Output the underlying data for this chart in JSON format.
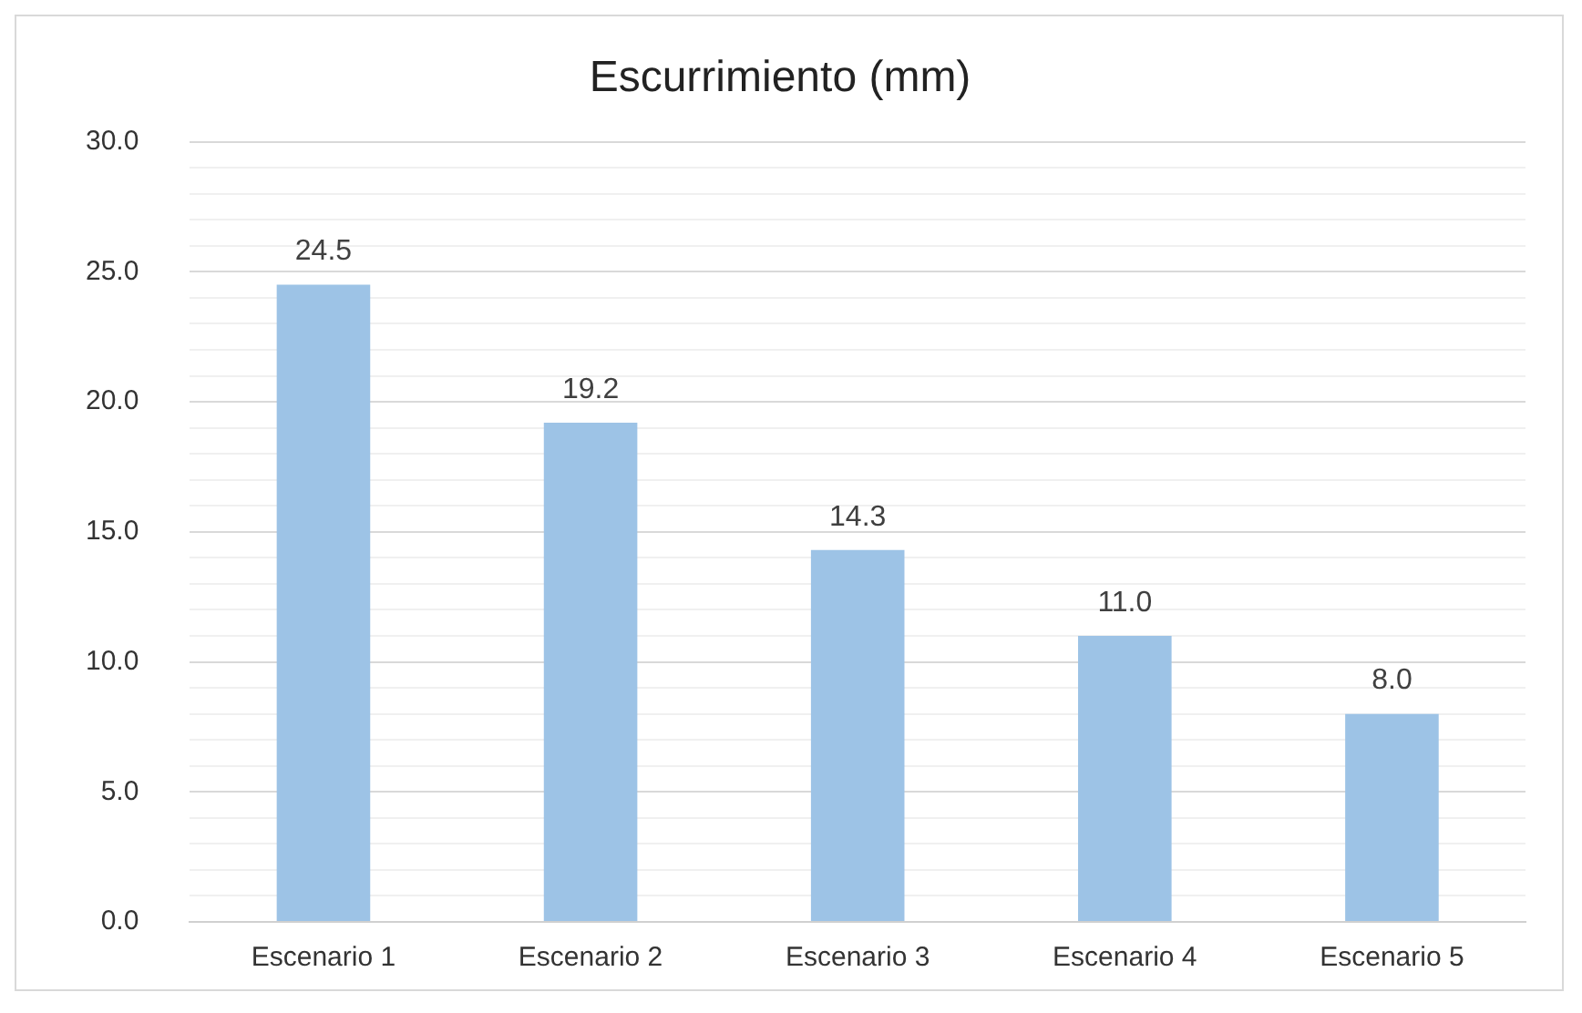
{
  "chart_data": {
    "type": "bar",
    "title": "Escurrimiento (mm)",
    "categories": [
      "Escenario 1",
      "Escenario 2",
      "Escenario 3",
      "Escenario 4",
      "Escenario 5"
    ],
    "values": [
      24.5,
      19.2,
      14.3,
      11.0,
      8.0
    ],
    "color": "#9dc3e6",
    "value_labels": [
      "24.5",
      "19.2",
      "14.3",
      "11.0",
      "8.0"
    ],
    "ylim": [
      0,
      30
    ],
    "yticks": [
      {
        "value": 0,
        "label": "0.0"
      },
      {
        "value": 1,
        "label": null
      },
      {
        "value": 2,
        "label": null
      },
      {
        "value": 3,
        "label": null
      },
      {
        "value": 4,
        "label": null
      },
      {
        "value": 5,
        "label": "5.0"
      },
      {
        "value": 6,
        "label": null
      },
      {
        "value": 7,
        "label": null
      },
      {
        "value": 8,
        "label": null
      },
      {
        "value": 9,
        "label": null
      },
      {
        "value": 10,
        "label": "10.0"
      },
      {
        "value": 11,
        "label": null
      },
      {
        "value": 12,
        "label": null
      },
      {
        "value": 13,
        "label": null
      },
      {
        "value": 14,
        "label": null
      },
      {
        "value": 15,
        "label": "15.0"
      },
      {
        "value": 16,
        "label": null
      },
      {
        "value": 17,
        "label": null
      },
      {
        "value": 18,
        "label": null
      },
      {
        "value": 19,
        "label": null
      },
      {
        "value": 20,
        "label": "20.0"
      },
      {
        "value": 21,
        "label": null
      },
      {
        "value": 22,
        "label": null
      },
      {
        "value": 23,
        "label": null
      },
      {
        "value": 24,
        "label": null
      },
      {
        "value": 25,
        "label": "25.0"
      },
      {
        "value": 26,
        "label": null
      },
      {
        "value": 27,
        "label": null
      },
      {
        "value": 28,
        "label": null
      },
      {
        "value": 29,
        "label": null
      },
      {
        "value": 30,
        "label": "30.0"
      }
    ],
    "grid": "y"
  }
}
